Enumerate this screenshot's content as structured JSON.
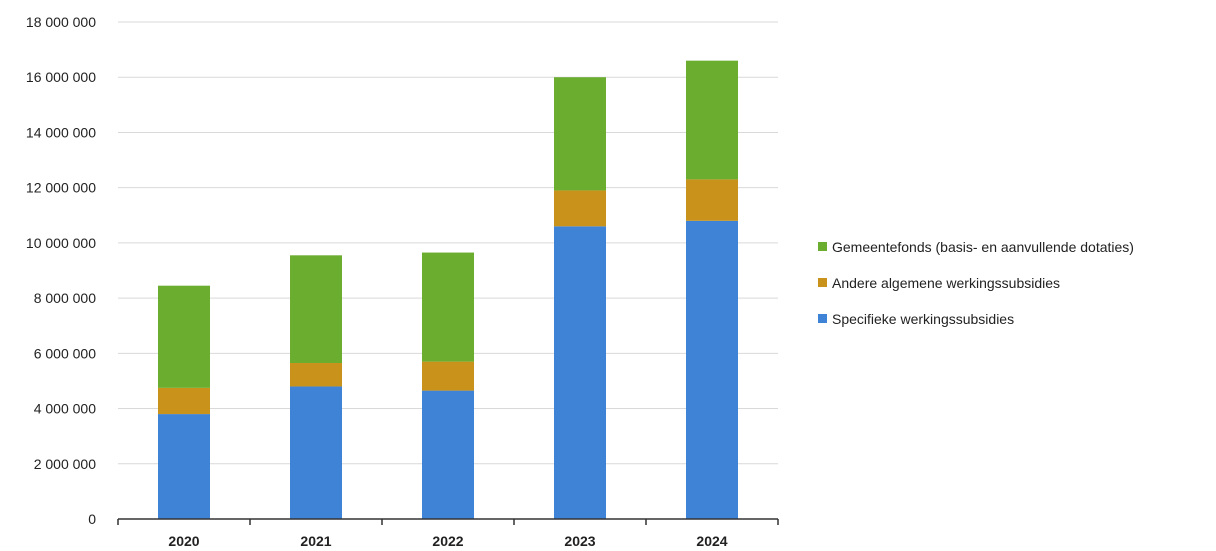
{
  "chart_data": {
    "type": "bar",
    "stacked": true,
    "title": "",
    "xlabel": "",
    "ylabel": "",
    "categories": [
      "2020",
      "2021",
      "2022",
      "2023",
      "2024"
    ],
    "ylim": [
      0,
      18000000
    ],
    "yticks": [
      0,
      2000000,
      4000000,
      6000000,
      8000000,
      10000000,
      12000000,
      14000000,
      16000000,
      18000000
    ],
    "ytick_labels": [
      "0",
      "2 000 000",
      "4 000 000",
      "6 000 000",
      "8 000 000",
      "10 000 000",
      "12 000 000",
      "14 000 000",
      "16 000 000",
      "18 000 000"
    ],
    "grid": true,
    "legend_position": "right",
    "series": [
      {
        "name": "Specifieke werkingssubsidies",
        "color": "#3f83d6",
        "values": [
          3800000,
          4800000,
          4650000,
          10600000,
          10800000
        ]
      },
      {
        "name": "Andere algemene werkingssubsidies",
        "color": "#c9921a",
        "values": [
          950000,
          850000,
          1050000,
          1300000,
          1500000
        ]
      },
      {
        "name": "Gemeentefonds (basis- en aanvullende dotaties)",
        "color": "#6aad2f",
        "values": [
          3700000,
          3900000,
          3950000,
          4100000,
          4300000
        ]
      }
    ],
    "legend_order": [
      "Gemeentefonds (basis- en aanvullende dotaties)",
      "Andere algemene werkingssubsidies",
      "Specifieke werkingssubsidies"
    ]
  },
  "colors": {
    "gridline": "#d9d9d9",
    "axis": "#333333"
  }
}
